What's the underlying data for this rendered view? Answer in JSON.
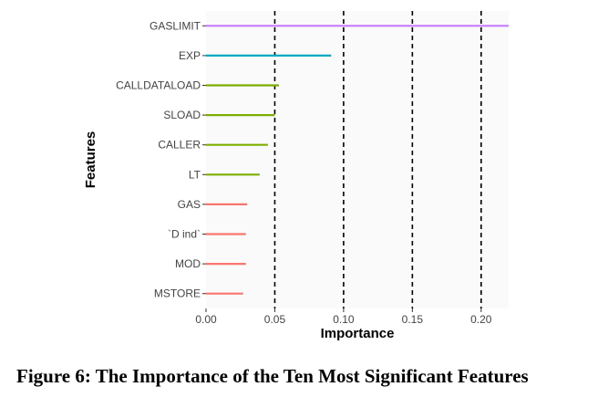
{
  "chart_data": {
    "type": "bar",
    "orientation": "horizontal",
    "xlabel": "Importance",
    "ylabel": "Features",
    "xlim": [
      0,
      0.22
    ],
    "x_ticks": [
      "0.00",
      "0.05",
      "0.10",
      "0.15",
      "0.20"
    ],
    "x_tick_values": [
      0,
      0.05,
      0.1,
      0.15,
      0.2
    ],
    "dashed_vlines": [
      0.05,
      0.1,
      0.15,
      0.2
    ],
    "grid": false,
    "categories": [
      "GASLIMIT",
      "EXP",
      "CALLDATALOAD",
      "SLOAD",
      "CALLER",
      "LT",
      "GAS",
      "`D ind`",
      "MOD",
      "MSTORE"
    ],
    "values": [
      0.22,
      0.091,
      0.053,
      0.05,
      0.045,
      0.039,
      0.03,
      0.029,
      0.029,
      0.027
    ],
    "colors": [
      "#c77cff",
      "#00a9c4",
      "#7cae00",
      "#7cae00",
      "#7cae00",
      "#7cae00",
      "#f8766d",
      "#f8766d",
      "#f8766d",
      "#f8766d"
    ],
    "panel_background": "#fafafa"
  },
  "caption": "Figure 6: The Importance of the Ten Most Significant Features"
}
